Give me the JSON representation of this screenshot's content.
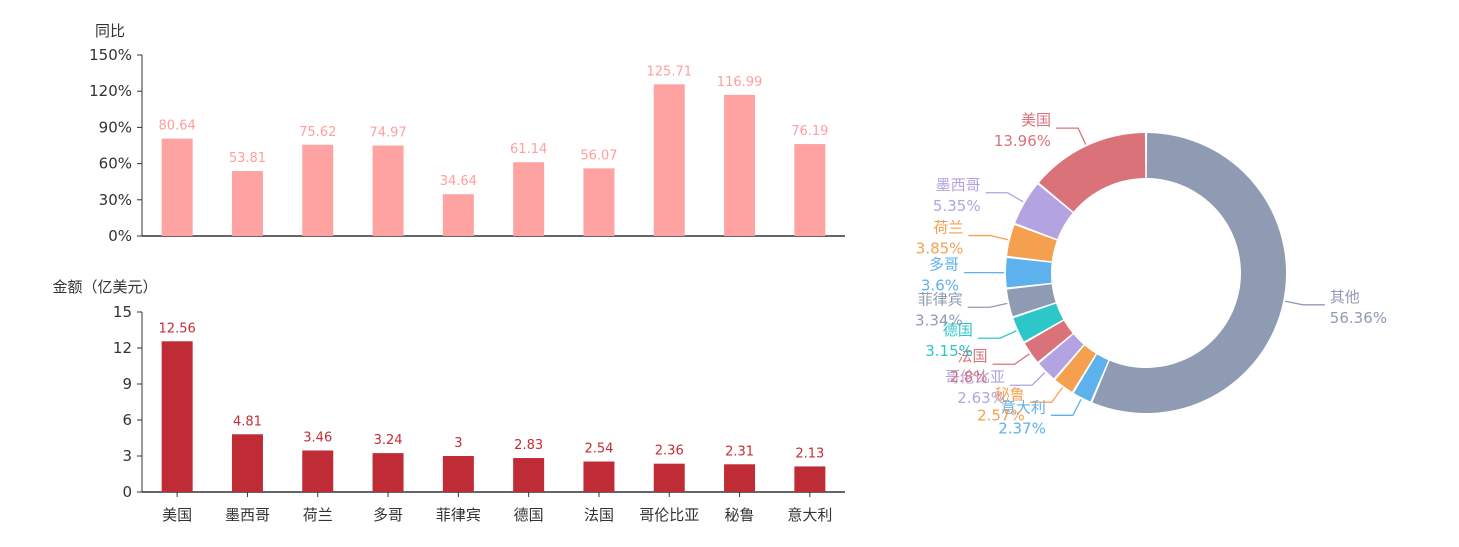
{
  "chart_data": [
    {
      "type": "bar",
      "ylabel": "同比",
      "categories": [
        "美国",
        "墨西哥",
        "荷兰",
        "多哥",
        "菲律宾",
        "德国",
        "法国",
        "哥伦比亚",
        "秘鲁",
        "意大利"
      ],
      "values": [
        80.64,
        53.81,
        75.62,
        74.97,
        34.64,
        61.14,
        56.07,
        125.71,
        116.99,
        76.19
      ],
      "value_labels": [
        "80.64",
        "53.81",
        "75.62",
        "74.97",
        "34.64",
        "61.14",
        "56.07",
        "125.71",
        "116.99",
        "76.19"
      ],
      "yticks": [
        "0%",
        "30%",
        "60%",
        "90%",
        "120%",
        "150%"
      ],
      "ylim": [
        0,
        150
      ],
      "color": "#ffa2a2",
      "label_color": "#ff9e9e"
    },
    {
      "type": "bar",
      "ylabel": "金额（亿美元）",
      "categories": [
        "美国",
        "墨西哥",
        "荷兰",
        "多哥",
        "菲律宾",
        "德国",
        "法国",
        "哥伦比亚",
        "秘鲁",
        "意大利"
      ],
      "values": [
        12.56,
        4.81,
        3.46,
        3.24,
        3,
        2.83,
        2.54,
        2.36,
        2.31,
        2.13
      ],
      "value_labels": [
        "12.56",
        "4.81",
        "3.46",
        "3.24",
        "3",
        "2.83",
        "2.54",
        "2.36",
        "2.31",
        "2.13"
      ],
      "yticks": [
        "0",
        "3",
        "6",
        "9",
        "12",
        "15"
      ],
      "ylim": [
        0,
        15
      ],
      "color": "#c02c35",
      "label_color": "#c72c35"
    },
    {
      "type": "pie",
      "donut": true,
      "slices": [
        {
          "name": "其他",
          "label": "56.36%",
          "value": 56.36,
          "color": "#8f9bb3"
        },
        {
          "name": "意大利",
          "label": "2.37%",
          "value": 2.37,
          "color": "#5db1ec"
        },
        {
          "name": "秘鲁",
          "label": "2.57%",
          "value": 2.57,
          "color": "#f4a04f"
        },
        {
          "name": "哥伦比亚",
          "label": "2.63%",
          "value": 2.63,
          "color": "#b3a3e0"
        },
        {
          "name": "法国",
          "label": "2.8%",
          "value": 2.8,
          "color": "#d97379"
        },
        {
          "name": "德国",
          "label": "3.15%",
          "value": 3.15,
          "color": "#2ec7c9"
        },
        {
          "name": "菲律宾",
          "label": "3.34%",
          "value": 3.34,
          "color": "#8f9bb3"
        },
        {
          "name": "多哥",
          "label": "3.6%",
          "value": 3.6,
          "color": "#5db1ec"
        },
        {
          "name": "荷兰",
          "label": "3.85%",
          "value": 3.85,
          "color": "#f4a04f"
        },
        {
          "name": "墨西哥",
          "label": "5.35%",
          "value": 5.35,
          "color": "#b3a3e0"
        },
        {
          "name": "美国",
          "label": "13.96%",
          "value": 13.96,
          "color": "#d97379"
        }
      ]
    }
  ]
}
